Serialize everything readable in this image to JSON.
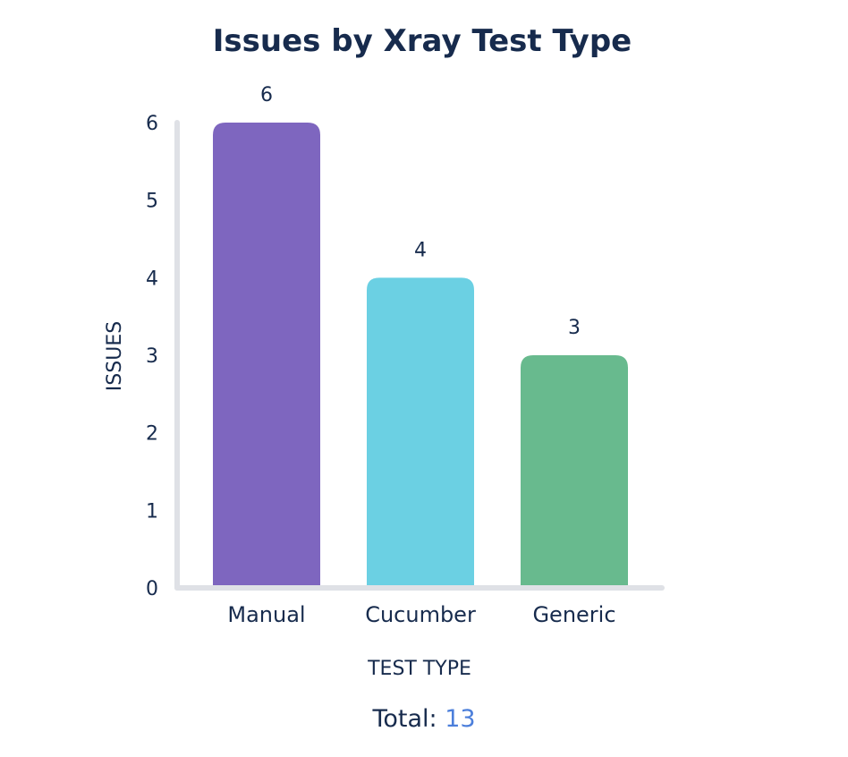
{
  "chart_data": {
    "type": "bar",
    "title": "Issues by Xray Test Type",
    "categories": [
      "Manual",
      "Cucumber",
      "Generic"
    ],
    "values": [
      6,
      4,
      3
    ],
    "colors": [
      "#7e66bf",
      "#6bd0e3",
      "#68ba8e"
    ],
    "xlabel": "TEST TYPE",
    "ylabel": "ISSUES",
    "ylim": [
      0,
      6
    ],
    "yticks": [
      "0",
      "1",
      "2",
      "3",
      "4",
      "5",
      "6"
    ],
    "data_labels": [
      "6",
      "4",
      "3"
    ],
    "grid": false,
    "legend": "none"
  },
  "footer": {
    "total_label": "Total:",
    "total_value": "13"
  },
  "colors": {
    "text": "#172b4d",
    "axis": "#dfe1e6",
    "link": "#4c7fdb"
  }
}
